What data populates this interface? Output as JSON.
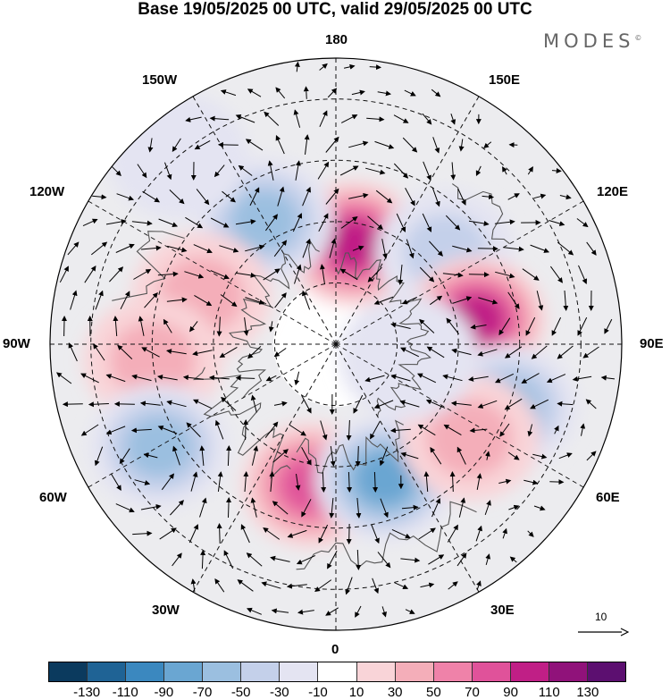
{
  "title": "Base 19/05/2025 00 UTC, valid 29/05/2025 00 UTC",
  "brand": "MODES",
  "brand_mark": "©",
  "longitude_labels": {
    "lon_180": "180",
    "lon_150w": "150W",
    "lon_150e": "150E",
    "lon_120w": "120W",
    "lon_120e": "120E",
    "lon_90w": "90W",
    "lon_90e": "90E",
    "lon_60w": "60W",
    "lon_60e": "60E",
    "lon_30w": "30W",
    "lon_30e": "30E",
    "lon_0": "0"
  },
  "reference_vector": {
    "label": "10"
  },
  "colorbar": {
    "colors": [
      "#0b3a5e",
      "#1f6395",
      "#3b88bf",
      "#6aa6d2",
      "#9bbfe0",
      "#c4d0ea",
      "#e4e4f2",
      "#ffffff",
      "#f9d4d8",
      "#f4aeb9",
      "#ef82a9",
      "#e0529a",
      "#c01f86",
      "#90127a",
      "#5c0f70"
    ],
    "tick_labels": [
      "-130",
      "-110",
      "-90",
      "-70",
      "-50",
      "-30",
      "-10",
      "10",
      "30",
      "50",
      "70",
      "90",
      "110",
      "130"
    ]
  },
  "anomalies": [
    {
      "lon": 170,
      "lat": 65,
      "value": 100
    },
    {
      "lon": -150,
      "lat": 55,
      "value": -70
    },
    {
      "lon": 130,
      "lat": 55,
      "value": -50
    },
    {
      "lon": 100,
      "lat": 55,
      "value": 95
    },
    {
      "lon": 70,
      "lat": 45,
      "value": -55
    },
    {
      "lon": -110,
      "lat": 55,
      "value": 45
    },
    {
      "lon": -85,
      "lat": 45,
      "value": 35
    },
    {
      "lon": -60,
      "lat": 40,
      "value": -55
    },
    {
      "lon": -10,
      "lat": 55,
      "value": 75
    },
    {
      "lon": 20,
      "lat": 55,
      "value": -80
    },
    {
      "lon": 55,
      "lat": 50,
      "value": 35
    },
    {
      "lon": -140,
      "lat": 30,
      "value": -15
    },
    {
      "lon": 80,
      "lat": 72,
      "value": -25
    }
  ]
}
